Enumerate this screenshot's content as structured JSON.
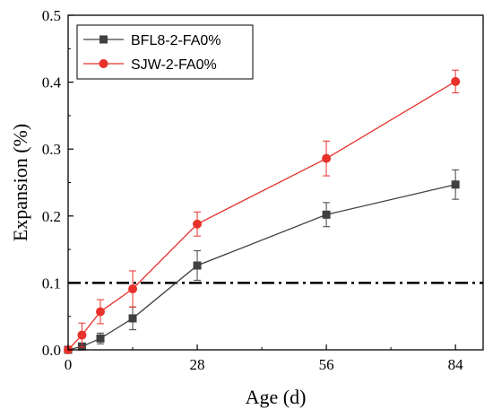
{
  "chart_data": {
    "type": "line",
    "title": "",
    "xlabel": "Age (d)",
    "ylabel": "Expansion (%)",
    "xlim": [
      0,
      90
    ],
    "ylim": [
      0,
      0.5
    ],
    "xticks": [
      0,
      28,
      56,
      84
    ],
    "xtick_labels": [
      "0",
      "28",
      "56",
      "84"
    ],
    "yticks": [
      0,
      0.1,
      0.2,
      0.3,
      0.4,
      0.5
    ],
    "ytick_labels": [
      "0.0",
      "0.1",
      "0.2",
      "0.3",
      "0.4",
      "0.5"
    ],
    "grid": false,
    "legend_position": "top-left",
    "threshold_line": {
      "y": 0.1,
      "style": "dash-dot",
      "color": "#000000"
    },
    "series": [
      {
        "name": "BFL8-2-FA0%",
        "color": "#404040",
        "marker": "square",
        "x": [
          0,
          3,
          7,
          14,
          28,
          56,
          84
        ],
        "y": [
          0.0,
          0.005,
          0.017,
          0.047,
          0.126,
          0.202,
          0.247
        ],
        "error": [
          0,
          0.004,
          0.008,
          0.017,
          0.022,
          0.018,
          0.022
        ]
      },
      {
        "name": "SJW-2-FA0%",
        "color": "#e8312a",
        "marker": "circle",
        "x": [
          0,
          3,
          7,
          14,
          28,
          56,
          84
        ],
        "y": [
          0.0,
          0.022,
          0.057,
          0.091,
          0.188,
          0.286,
          0.401
        ],
        "error": [
          0,
          0.018,
          0.018,
          0.027,
          0.018,
          0.026,
          0.017
        ]
      }
    ]
  }
}
